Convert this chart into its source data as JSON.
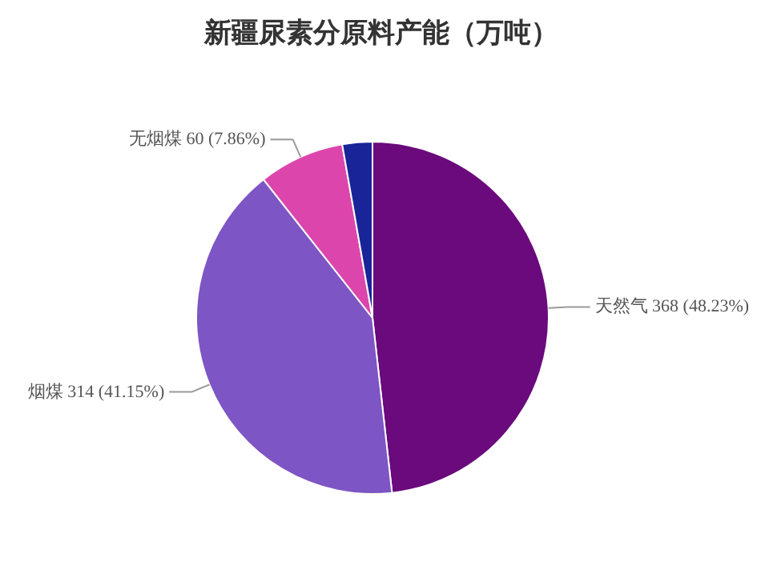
{
  "chart_data": {
    "type": "pie",
    "title": "新疆尿素分原料产能（万吨）",
    "categories": [
      "天然气",
      "烟煤",
      "无烟煤",
      null
    ],
    "values": [
      368,
      314,
      60,
      21
    ],
    "colors": [
      "#6a0a7c",
      "#7e55c4",
      "#dc46ac",
      "#1a2499"
    ],
    "value_labels": [
      "368 (48.23%)",
      "314 (41.15%)",
      "60 (7.86%)",
      null
    ]
  }
}
